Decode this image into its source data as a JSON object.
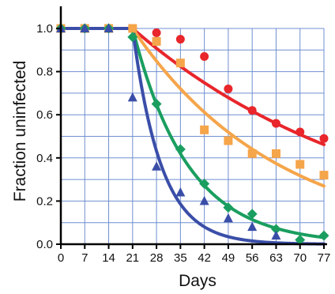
{
  "chart_data": {
    "type": "scatter",
    "title": "",
    "xlabel": "Days",
    "ylabel": "Fraction uninfected",
    "xlim": [
      0,
      77
    ],
    "ylim": [
      0,
      1.0
    ],
    "xticks": [
      0,
      7,
      14,
      21,
      28,
      35,
      42,
      49,
      56,
      63,
      70,
      77
    ],
    "yticks": [
      0.0,
      0.2,
      0.4,
      0.6,
      0.8,
      1.0
    ],
    "ytick_labels": [
      "0.0",
      "0.2",
      "0.4",
      "0.6",
      "0.8",
      "1.0"
    ],
    "grid": true,
    "legend": "none",
    "series": [
      {
        "marker": "circle",
        "color": "#e8262b",
        "x": [
          0,
          7,
          14,
          21,
          28,
          35,
          42,
          49,
          56,
          63,
          70,
          77
        ],
        "y": [
          1.0,
          1.0,
          1.0,
          1.0,
          0.98,
          0.95,
          0.87,
          0.72,
          0.62,
          0.56,
          0.52,
          0.49
        ],
        "fit": {
          "x": [
            0,
            21,
            77
          ],
          "y": [
            1.0,
            1.0,
            0.46
          ],
          "decay_start": 21,
          "rate": 0.0138
        }
      },
      {
        "marker": "square",
        "color": "#f5a54a",
        "x": [
          0,
          7,
          14,
          21,
          28,
          35,
          42,
          49,
          56,
          63,
          70,
          77
        ],
        "y": [
          1.0,
          1.0,
          1.0,
          1.0,
          0.94,
          0.84,
          0.53,
          0.48,
          0.42,
          0.42,
          0.37,
          0.32
        ],
        "fit": {
          "x": [
            0,
            21,
            77
          ],
          "y": [
            1.0,
            1.0,
            0.27
          ],
          "decay_start": 21,
          "rate": 0.0234
        }
      },
      {
        "marker": "diamond",
        "color": "#1a9e5f",
        "x": [
          0,
          7,
          14,
          21,
          28,
          35,
          42,
          49,
          56,
          63,
          70,
          77
        ],
        "y": [
          1.0,
          1.0,
          1.0,
          0.96,
          0.65,
          0.44,
          0.28,
          0.17,
          0.14,
          0.07,
          0.02,
          0.04
        ],
        "fit": {
          "x": [
            0,
            21,
            77
          ],
          "y": [
            1.0,
            1.0,
            0.03
          ],
          "decay_start": 21,
          "rate": 0.062
        }
      },
      {
        "marker": "triangle",
        "color": "#3a4ea8",
        "x": [
          0,
          7,
          14,
          21,
          28,
          35,
          42,
          49,
          56,
          63
        ],
        "y": [
          1.0,
          1.0,
          1.0,
          0.68,
          0.36,
          0.24,
          0.2,
          0.12,
          0.08,
          0.04
        ],
        "fit": {
          "x": [
            0,
            21,
            77
          ],
          "y": [
            1.0,
            1.0,
            0.0
          ],
          "decay_start": 21,
          "rate": 0.12
        }
      }
    ]
  }
}
